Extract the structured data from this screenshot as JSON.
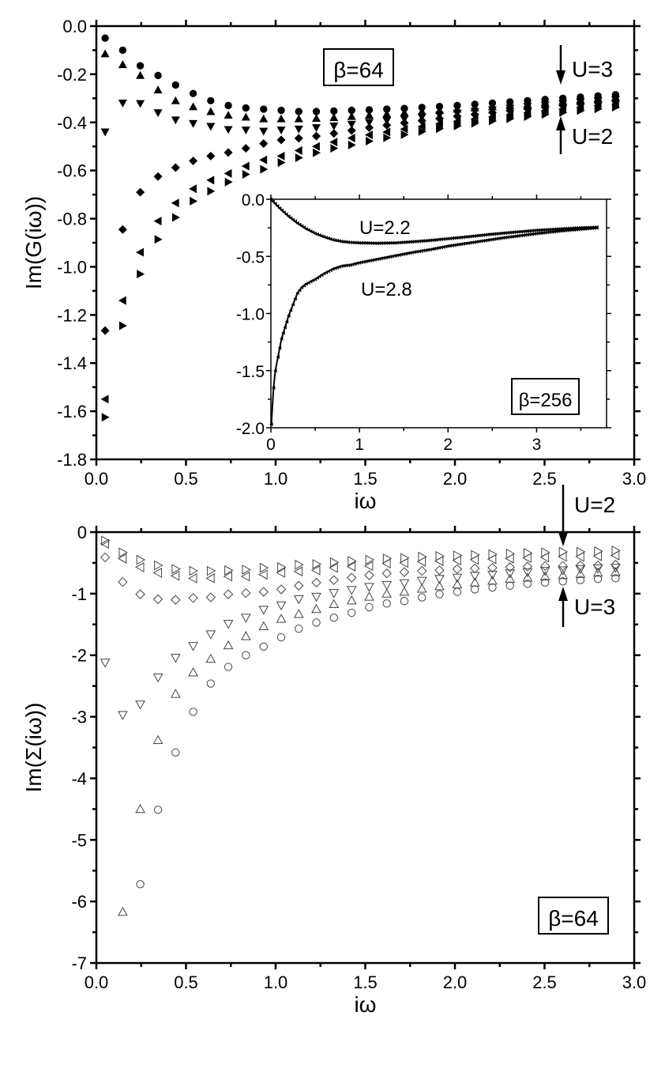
{
  "chart_data": [
    {
      "type": "scatter",
      "panel": "top",
      "title": "",
      "xlabel": "iω",
      "ylabel": "Im(G(iω))",
      "xlim": [
        0,
        3.0
      ],
      "ylim": [
        -1.8,
        0.0
      ],
      "grid": false,
      "xticks": [
        "0.0",
        "0.5",
        "1.0",
        "1.5",
        "2.0",
        "2.5",
        "3.0"
      ],
      "yticks": [
        "0.0",
        "-0.2",
        "-0.4",
        "-0.6",
        "-0.8",
        "-1.0",
        "-1.2",
        "-1.4",
        "-1.6",
        "-1.8"
      ],
      "annotations": {
        "beta": "β=64",
        "upper": "U=3",
        "lower": "U=2"
      },
      "x": [
        0.049,
        0.147,
        0.245,
        0.344,
        0.442,
        0.54,
        0.638,
        0.736,
        0.834,
        0.933,
        1.031,
        1.129,
        1.227,
        1.325,
        1.424,
        1.522,
        1.62,
        1.718,
        1.816,
        1.914,
        2.013,
        2.111,
        2.209,
        2.307,
        2.405,
        2.503,
        2.602,
        2.7,
        2.798,
        2.896
      ],
      "series": [
        {
          "name": "filled-circle",
          "marker": "circle",
          "values": [
            -0.05,
            -0.1,
            -0.165,
            -0.205,
            -0.245,
            -0.28,
            -0.31,
            -0.33,
            -0.34,
            -0.345,
            -0.35,
            -0.355,
            -0.355,
            -0.353,
            -0.35,
            -0.348,
            -0.345,
            -0.342,
            -0.338,
            -0.334,
            -0.33,
            -0.325,
            -0.32,
            -0.315,
            -0.31,
            -0.305,
            -0.3,
            -0.295,
            -0.29,
            -0.285
          ]
        },
        {
          "name": "filled-triangle-up",
          "marker": "up",
          "values": [
            -0.115,
            -0.16,
            -0.205,
            -0.265,
            -0.31,
            -0.335,
            -0.355,
            -0.37,
            -0.378,
            -0.385,
            -0.385,
            -0.385,
            -0.383,
            -0.38,
            -0.375,
            -0.37,
            -0.365,
            -0.36,
            -0.355,
            -0.35,
            -0.345,
            -0.34,
            -0.335,
            -0.33,
            -0.325,
            -0.318,
            -0.312,
            -0.306,
            -0.3,
            -0.295
          ]
        },
        {
          "name": "filled-triangle-down",
          "marker": "down",
          "values": [
            -0.44,
            -0.32,
            -0.322,
            -0.36,
            -0.39,
            -0.405,
            -0.417,
            -0.43,
            -0.432,
            -0.437,
            -0.432,
            -0.428,
            -0.422,
            -0.415,
            -0.408,
            -0.4,
            -0.393,
            -0.386,
            -0.378,
            -0.37,
            -0.362,
            -0.355,
            -0.348,
            -0.341,
            -0.334,
            -0.328,
            -0.322,
            -0.316,
            -0.31,
            -0.305
          ]
        },
        {
          "name": "filled-diamond",
          "marker": "diamond",
          "values": [
            -1.265,
            -0.845,
            -0.69,
            -0.625,
            -0.588,
            -0.56,
            -0.54,
            -0.525,
            -0.508,
            -0.488,
            -0.473,
            -0.466,
            -0.457,
            -0.446,
            -0.434,
            -0.422,
            -0.412,
            -0.402,
            -0.393,
            -0.384,
            -0.375,
            -0.367,
            -0.359,
            -0.351,
            -0.344,
            -0.337,
            -0.33,
            -0.324,
            -0.318,
            -0.312
          ]
        },
        {
          "name": "filled-triangle-left",
          "marker": "left",
          "values": [
            -1.55,
            -1.14,
            -0.94,
            -0.81,
            -0.735,
            -0.676,
            -0.64,
            -0.612,
            -0.582,
            -0.556,
            -0.54,
            -0.517,
            -0.5,
            -0.482,
            -0.465,
            -0.452,
            -0.44,
            -0.428,
            -0.417,
            -0.406,
            -0.396,
            -0.386,
            -0.377,
            -0.368,
            -0.36,
            -0.352,
            -0.345,
            -0.338,
            -0.331,
            -0.325
          ]
        },
        {
          "name": "filled-triangle-right",
          "marker": "right",
          "values": [
            -1.625,
            -1.245,
            -1.03,
            -0.886,
            -0.795,
            -0.727,
            -0.686,
            -0.648,
            -0.616,
            -0.595,
            -0.567,
            -0.547,
            -0.526,
            -0.508,
            -0.494,
            -0.478,
            -0.464,
            -0.451,
            -0.438,
            -0.426,
            -0.415,
            -0.404,
            -0.394,
            -0.385,
            -0.376,
            -0.367,
            -0.359,
            -0.351,
            -0.344,
            -0.337
          ]
        }
      ]
    },
    {
      "type": "line",
      "panel": "inset",
      "title": "",
      "xlabel": "",
      "ylabel": "",
      "xlim": [
        0,
        3.79
      ],
      "ylim": [
        -2.0,
        0.0
      ],
      "grid": false,
      "xticks": [
        "0",
        "1",
        "2",
        "3"
      ],
      "yticks": [
        "0.0",
        "-0.5",
        "-1.0",
        "-1.5",
        "-2.0"
      ],
      "annotations": {
        "beta": "β=256"
      },
      "series": [
        {
          "name": "U=2.2",
          "points": [
            [
              0,
              0
            ],
            [
              0.05,
              -0.04
            ],
            [
              0.1,
              -0.08
            ],
            [
              0.2,
              -0.15
            ],
            [
              0.3,
              -0.21
            ],
            [
              0.4,
              -0.26
            ],
            [
              0.5,
              -0.3
            ],
            [
              0.6,
              -0.33
            ],
            [
              0.7,
              -0.355
            ],
            [
              0.8,
              -0.37
            ],
            [
              0.9,
              -0.378
            ],
            [
              1.0,
              -0.382
            ],
            [
              1.2,
              -0.385
            ],
            [
              1.4,
              -0.382
            ],
            [
              1.6,
              -0.372
            ],
            [
              1.8,
              -0.36
            ],
            [
              2.0,
              -0.345
            ],
            [
              2.2,
              -0.33
            ],
            [
              2.5,
              -0.305
            ],
            [
              2.8,
              -0.285
            ],
            [
              3.0,
              -0.272
            ],
            [
              3.3,
              -0.258
            ],
            [
              3.5,
              -0.25
            ],
            [
              3.68,
              -0.245
            ]
          ]
        },
        {
          "name": "U=2.8",
          "points": [
            [
              0.005,
              -1.97
            ],
            [
              0.03,
              -1.65
            ],
            [
              0.05,
              -1.5
            ],
            [
              0.08,
              -1.38
            ],
            [
              0.12,
              -1.22
            ],
            [
              0.16,
              -1.12
            ],
            [
              0.2,
              -1.02
            ],
            [
              0.25,
              -0.92
            ],
            [
              0.3,
              -0.82
            ],
            [
              0.35,
              -0.77
            ],
            [
              0.4,
              -0.74
            ],
            [
              0.5,
              -0.7
            ],
            [
              0.6,
              -0.65
            ],
            [
              0.7,
              -0.61
            ],
            [
              0.8,
              -0.585
            ],
            [
              0.9,
              -0.575
            ],
            [
              1.0,
              -0.555
            ],
            [
              1.2,
              -0.525
            ],
            [
              1.4,
              -0.495
            ],
            [
              1.6,
              -0.465
            ],
            [
              1.8,
              -0.44
            ],
            [
              2.0,
              -0.41
            ],
            [
              2.3,
              -0.375
            ],
            [
              2.6,
              -0.34
            ],
            [
              3.0,
              -0.3
            ],
            [
              3.3,
              -0.275
            ],
            [
              3.5,
              -0.262
            ],
            [
              3.68,
              -0.25
            ]
          ]
        }
      ],
      "labels": [
        "U=2.2",
        "U=2.8"
      ]
    },
    {
      "type": "scatter",
      "panel": "bottom",
      "title": "",
      "xlabel": "iω",
      "ylabel": "Im(Σ(iω))",
      "xlim": [
        0,
        3.0
      ],
      "ylim": [
        -7,
        0
      ],
      "grid": false,
      "xticks": [
        "0.0",
        "0.5",
        "1.0",
        "1.5",
        "2.0",
        "2.5",
        "3.0"
      ],
      "yticks": [
        "0",
        "-1",
        "-2",
        "-3",
        "-4",
        "-5",
        "-6",
        "-7"
      ],
      "annotations": {
        "beta": "β=64",
        "upper": "U=2",
        "lower": "U=3"
      },
      "x": [
        0.049,
        0.147,
        0.245,
        0.344,
        0.442,
        0.54,
        0.638,
        0.736,
        0.834,
        0.933,
        1.031,
        1.129,
        1.227,
        1.325,
        1.424,
        1.522,
        1.62,
        1.718,
        1.816,
        1.914,
        2.013,
        2.111,
        2.209,
        2.307,
        2.405,
        2.503,
        2.602,
        2.7,
        2.798,
        2.896
      ],
      "series": [
        {
          "name": "open-triangle-right",
          "marker": "right",
          "values": [
            -0.14,
            -0.33,
            -0.45,
            -0.54,
            -0.6,
            -0.63,
            -0.63,
            -0.62,
            -0.61,
            -0.58,
            -0.57,
            -0.53,
            -0.52,
            -0.49,
            -0.47,
            -0.45,
            -0.43,
            -0.42,
            -0.4,
            -0.39,
            -0.38,
            -0.37,
            -0.36,
            -0.35,
            -0.34,
            -0.33,
            -0.32,
            -0.32,
            -0.31,
            -0.3
          ]
        },
        {
          "name": "open-triangle-left",
          "marker": "left",
          "values": [
            -0.19,
            -0.43,
            -0.57,
            -0.66,
            -0.71,
            -0.75,
            -0.75,
            -0.72,
            -0.72,
            -0.69,
            -0.66,
            -0.64,
            -0.62,
            -0.58,
            -0.56,
            -0.55,
            -0.51,
            -0.5,
            -0.48,
            -0.47,
            -0.46,
            -0.45,
            -0.44,
            -0.43,
            -0.42,
            -0.41,
            -0.4,
            -0.4,
            -0.39,
            -0.38
          ]
        },
        {
          "name": "open-diamond",
          "marker": "diamond",
          "values": [
            -0.41,
            -0.81,
            -1.01,
            -1.09,
            -1.1,
            -1.07,
            -1.06,
            -1.01,
            -0.99,
            -0.97,
            -0.93,
            -0.87,
            -0.82,
            -0.78,
            -0.74,
            -0.7,
            -0.67,
            -0.65,
            -0.63,
            -0.62,
            -0.6,
            -0.59,
            -0.58,
            -0.57,
            -0.56,
            -0.55,
            -0.55,
            -0.54,
            -0.54,
            -0.53
          ]
        },
        {
          "name": "open-triangle-down",
          "marker": "down",
          "values": [
            -2.12,
            -2.97,
            -2.8,
            -2.36,
            -2.04,
            -1.85,
            -1.66,
            -1.49,
            -1.39,
            -1.26,
            -1.19,
            -1.09,
            -1.05,
            -0.99,
            -0.94,
            -0.89,
            -0.86,
            -0.83,
            -0.79,
            -0.76,
            -0.74,
            -0.71,
            -0.69,
            -0.67,
            -0.65,
            -0.63,
            -0.62,
            -0.6,
            -0.59,
            -0.58
          ]
        },
        {
          "name": "open-triangle-up",
          "marker": "up",
          "values": [
            null,
            -6.17,
            -4.5,
            -3.38,
            -2.63,
            -2.28,
            -2.06,
            -1.84,
            -1.69,
            -1.53,
            -1.41,
            -1.33,
            -1.25,
            -1.17,
            -1.11,
            -1.05,
            -1.0,
            -0.97,
            -0.92,
            -0.88,
            -0.85,
            -0.82,
            -0.79,
            -0.76,
            -0.74,
            -0.72,
            -0.7,
            -0.68,
            -0.66,
            -0.65
          ]
        },
        {
          "name": "open-circle",
          "marker": "circle",
          "values": [
            null,
            null,
            -5.72,
            -4.51,
            -3.58,
            -2.92,
            -2.46,
            -2.19,
            -2.0,
            -1.86,
            -1.71,
            -1.57,
            -1.47,
            -1.39,
            -1.31,
            -1.22,
            -1.16,
            -1.12,
            -1.06,
            -1.01,
            -0.97,
            -0.93,
            -0.9,
            -0.87,
            -0.84,
            -0.82,
            -0.8,
            -0.78,
            -0.76,
            -0.75
          ]
        }
      ]
    }
  ]
}
